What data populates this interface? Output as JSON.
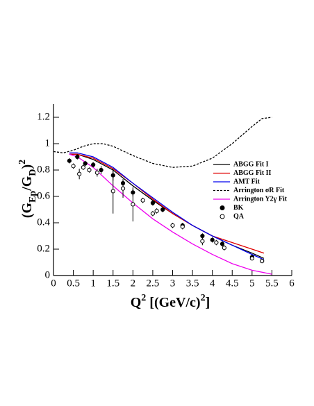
{
  "chart_data": {
    "type": "line",
    "xlim": [
      0,
      6
    ],
    "ylim": [
      0,
      1.3
    ],
    "xticks": [
      0,
      0.5,
      1,
      1.5,
      2,
      2.5,
      3,
      3.5,
      4,
      4.5,
      5,
      5.5,
      6
    ],
    "yticks": [
      0,
      0.2,
      0.4,
      0.6,
      0.8,
      1,
      1.2
    ],
    "x_label": [
      {
        "text": "Q"
      },
      {
        "text": "2",
        "sup": true
      },
      {
        "text": " [(GeV/c)"
      },
      {
        "text": "2",
        "sup": true
      },
      {
        "text": "]"
      }
    ],
    "y_label": [
      {
        "text": "(G"
      },
      {
        "text": "Ep",
        "sub": true
      },
      {
        "text": "/G"
      },
      {
        "text": "D",
        "sub": true
      },
      {
        "text": ")"
      },
      {
        "text": "2",
        "sup": true
      }
    ],
    "series": [
      {
        "name": "ABGG Fit I",
        "color": "#000000",
        "style": "solid",
        "x": [
          0.4,
          0.6,
          1.0,
          1.5,
          2.0,
          2.5,
          3.0,
          3.5,
          4.0,
          4.5,
          5.0,
          5.3
        ],
        "values": [
          0.92,
          0.92,
          0.88,
          0.8,
          0.68,
          0.57,
          0.47,
          0.38,
          0.3,
          0.23,
          0.17,
          0.13
        ]
      },
      {
        "name": "ABGG Fit II",
        "color": "#e00000",
        "style": "solid",
        "x": [
          0.4,
          0.6,
          1.0,
          1.5,
          2.0,
          2.5,
          3.0,
          3.5,
          4.0,
          4.5,
          5.0,
          5.3
        ],
        "values": [
          0.92,
          0.92,
          0.89,
          0.81,
          0.7,
          0.58,
          0.47,
          0.38,
          0.3,
          0.25,
          0.2,
          0.17
        ]
      },
      {
        "name": "AMT Fit",
        "color": "#0000ee",
        "style": "solid",
        "x": [
          0.4,
          0.6,
          1.0,
          1.5,
          2.0,
          2.5,
          3.0,
          3.5,
          4.0,
          4.5,
          5.0,
          5.3
        ],
        "values": [
          0.93,
          0.93,
          0.9,
          0.82,
          0.7,
          0.59,
          0.48,
          0.38,
          0.3,
          0.23,
          0.16,
          0.12
        ]
      },
      {
        "name": "Arrington σR Fit",
        "color": "#000000",
        "style": "dashed",
        "x": [
          0,
          0.25,
          0.5,
          0.75,
          1.0,
          1.25,
          1.5,
          2.0,
          2.5,
          3.0,
          3.5,
          4.0,
          4.5,
          5.0,
          5.25,
          5.5
        ],
        "values": [
          0.94,
          0.93,
          0.95,
          0.98,
          1.0,
          1.0,
          0.98,
          0.91,
          0.85,
          0.82,
          0.83,
          0.89,
          1.0,
          1.13,
          1.19,
          1.2
        ]
      },
      {
        "name": "Arrington Y2γ Fit",
        "color": "#ee00ee",
        "style": "solid",
        "x": [
          0.4,
          0.6,
          1.0,
          1.5,
          2.0,
          2.5,
          3.0,
          3.5,
          4.0,
          4.5,
          5.0,
          5.5
        ],
        "values": [
          0.92,
          0.9,
          0.82,
          0.68,
          0.55,
          0.43,
          0.33,
          0.24,
          0.16,
          0.09,
          0.04,
          0.01
        ]
      },
      {
        "name": "BK",
        "color": "#000000",
        "style": "points",
        "marker": "filled",
        "x": [
          0.4,
          0.6,
          0.8,
          1.0,
          1.2,
          1.5,
          1.75,
          2.0,
          2.5,
          2.75,
          3.25,
          3.75,
          4.0,
          4.25,
          5.0,
          5.25
        ],
        "values": [
          0.87,
          0.9,
          0.85,
          0.84,
          0.8,
          0.76,
          0.7,
          0.63,
          0.55,
          0.5,
          0.38,
          0.3,
          0.27,
          0.24,
          0.14,
          0.11
        ],
        "errors": [
          0.02,
          0.02,
          0.02,
          0.02,
          0.03,
          0.04,
          0.03,
          0.03,
          0.02,
          0.02,
          0.02,
          0.02,
          0.02,
          0.02,
          0.01,
          0.01
        ]
      },
      {
        "name": "QA",
        "color": "#000000",
        "style": "points",
        "marker": "open",
        "x": [
          0.5,
          0.65,
          0.75,
          0.9,
          1.1,
          1.5,
          1.75,
          2.0,
          2.25,
          2.5,
          2.6,
          3.0,
          3.25,
          3.75,
          4.1,
          4.3,
          5.0,
          5.25
        ],
        "values": [
          0.83,
          0.77,
          0.82,
          0.8,
          0.78,
          0.64,
          0.66,
          0.54,
          0.57,
          0.47,
          0.49,
          0.38,
          0.37,
          0.26,
          0.25,
          0.21,
          0.13,
          0.11
        ],
        "errors": [
          0.02,
          0.04,
          0.02,
          0.02,
          0.03,
          0.17,
          0.07,
          0.13,
          0.02,
          0.02,
          0.02,
          0.02,
          0.02,
          0.03,
          0.02,
          0.02,
          0.01,
          0.01
        ]
      }
    ]
  }
}
